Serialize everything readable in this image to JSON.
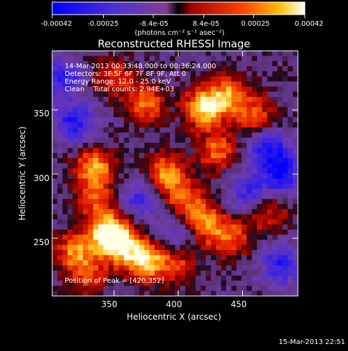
{
  "chart_data": {
    "type": "heatmap",
    "title": "Reconstructed RHESSI Image",
    "xlabel": "Heliocentric X (arcsec)",
    "ylabel": "Heliocentric Y (arcsec)",
    "xlim": [
      302,
      493
    ],
    "ylim": [
      205,
      396
    ],
    "xticks": [
      "350",
      "400",
      "450"
    ],
    "xtick_values": [
      350,
      400,
      450
    ],
    "yticks": [
      "250",
      "300",
      "350"
    ],
    "ytick_values": [
      250,
      300,
      350
    ],
    "colorbar": {
      "ticks": [
        "-0.00042",
        "-0.00025",
        "-8.4e-05",
        "8.4e-05",
        "0.00025",
        "0.00042"
      ],
      "tick_values": [
        -0.00042,
        -0.00025,
        -8.4e-05,
        8.4e-05,
        0.00025,
        0.00042
      ],
      "range": [
        -0.00042,
        0.00042
      ],
      "units_line": "(photons cm⁻² s⁻¹ asec⁻²)"
    },
    "colors": {
      "neg_low": "#0000ff",
      "neg_mid": "#8040c0",
      "zero": "#000000",
      "pos_mid": "#e02000",
      "pos_high": "#ff9000",
      "peak": "#ffffd0"
    },
    "blobs": [
      {
        "x": 420,
        "y": 352,
        "amp": 0.00042
      },
      {
        "x": 375,
        "y": 355,
        "amp": 0.00028
      },
      {
        "x": 440,
        "y": 362,
        "amp": 0.0003
      },
      {
        "x": 460,
        "y": 345,
        "amp": 0.00024
      },
      {
        "x": 430,
        "y": 318,
        "amp": 0.00027
      },
      {
        "x": 390,
        "y": 300,
        "amp": 0.00032
      },
      {
        "x": 405,
        "y": 280,
        "amp": 0.00025
      },
      {
        "x": 420,
        "y": 262,
        "amp": 0.0003
      },
      {
        "x": 440,
        "y": 250,
        "amp": 0.00026
      },
      {
        "x": 345,
        "y": 255,
        "amp": 0.0004
      },
      {
        "x": 355,
        "y": 245,
        "amp": 0.00038
      },
      {
        "x": 375,
        "y": 232,
        "amp": 0.0004
      },
      {
        "x": 320,
        "y": 240,
        "amp": 0.0003
      },
      {
        "x": 335,
        "y": 305,
        "amp": 0.00034
      },
      {
        "x": 335,
        "y": 280,
        "amp": 0.00022
      },
      {
        "x": 350,
        "y": 375,
        "amp": 0.0002
      },
      {
        "x": 330,
        "y": 220,
        "amp": 0.0002
      },
      {
        "x": 400,
        "y": 230,
        "amp": 0.0002
      },
      {
        "x": 470,
        "y": 270,
        "amp": 0.00022
      },
      {
        "x": 480,
        "y": 300,
        "amp": -0.00032
      },
      {
        "x": 320,
        "y": 340,
        "amp": -0.0003
      },
      {
        "x": 470,
        "y": 320,
        "amp": -0.0003
      },
      {
        "x": 480,
        "y": 230,
        "amp": -0.00028
      },
      {
        "x": 370,
        "y": 280,
        "amp": -0.00022
      },
      {
        "x": 455,
        "y": 285,
        "amp": -0.00024
      },
      {
        "x": 310,
        "y": 375,
        "amp": -0.00026
      },
      {
        "x": 400,
        "y": 255,
        "amp": -0.00018
      }
    ]
  },
  "info": {
    "time_range": "14-Mar-2013 00:33:48.000 to 00:36:24.000",
    "detectors": "Detectors: 3F 5F 6F 7F 8F 9F, Att 0",
    "energy": "Energy Range: 12.0 - 25.0 keV",
    "algorithm": "Clean    Total counts: 2.94E+03",
    "peak": "Position of Peak = [420,352]"
  },
  "timestamp": "15-Mar-2013 22:51"
}
